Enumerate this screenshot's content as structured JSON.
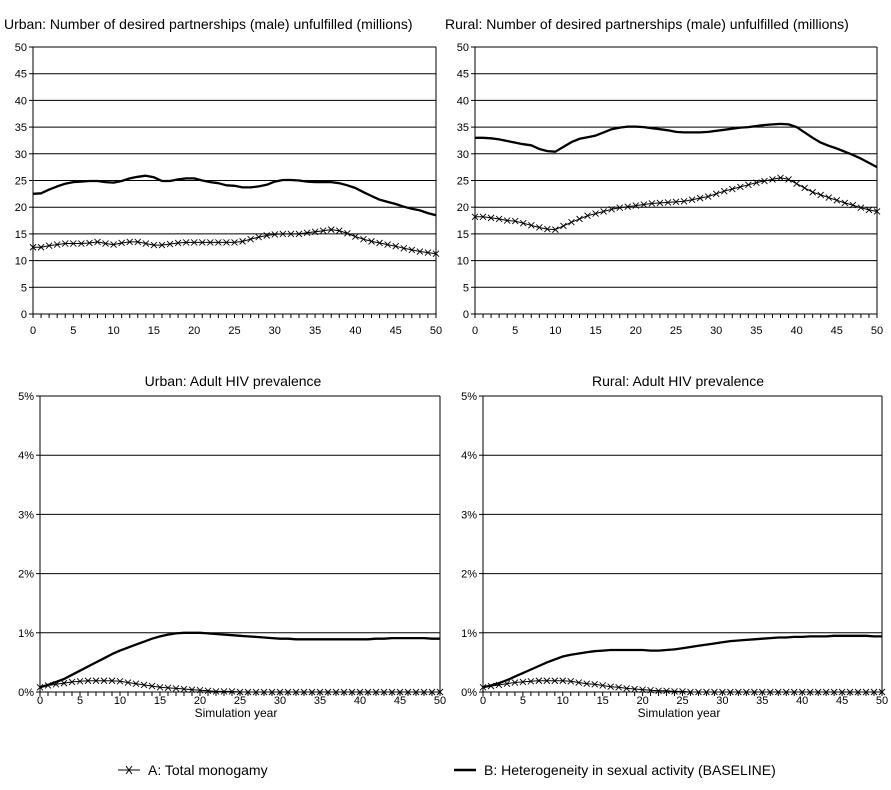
{
  "legend": [
    {
      "label": "A: Total monogamy",
      "marker": "x"
    },
    {
      "label": "B: Heterogeneity in sexual activity (BASELINE)",
      "marker": "none"
    }
  ],
  "colors": {
    "series": "#000000",
    "grid": "#000000",
    "background": "#ffffff"
  },
  "chart_data": [
    {
      "type": "line",
      "title": "Urban: Number of desired partnerships (male) unfulfilled (millions)",
      "xlabel": "",
      "ylabel": "",
      "xlim": [
        0,
        50
      ],
      "ylim": [
        0,
        50
      ],
      "x_ticks": [
        0,
        5,
        10,
        15,
        20,
        25,
        30,
        35,
        40,
        45,
        50
      ],
      "y_ticks": [
        "0",
        "5",
        "10",
        "15",
        "20",
        "25",
        "30",
        "35",
        "40",
        "45",
        "50"
      ],
      "grid": "horizontal",
      "series": [
        {
          "name": "A: Total monogamy",
          "marker": "x",
          "x": [
            0,
            1,
            2,
            3,
            4,
            5,
            6,
            7,
            8,
            9,
            10,
            11,
            12,
            13,
            14,
            15,
            16,
            17,
            18,
            19,
            20,
            21,
            22,
            23,
            24,
            25,
            26,
            27,
            28,
            29,
            30,
            31,
            32,
            33,
            34,
            35,
            36,
            37,
            38,
            39,
            40,
            41,
            42,
            43,
            44,
            45,
            46,
            47,
            48,
            49,
            50
          ],
          "values": [
            12.5,
            12.5,
            12.8,
            13.0,
            13.2,
            13.2,
            13.2,
            13.3,
            13.5,
            13.2,
            13.0,
            13.3,
            13.5,
            13.5,
            13.2,
            12.9,
            12.9,
            13.1,
            13.3,
            13.4,
            13.4,
            13.4,
            13.4,
            13.4,
            13.4,
            13.4,
            13.6,
            14.0,
            14.4,
            14.7,
            14.9,
            15.0,
            15.0,
            15.0,
            15.2,
            15.4,
            15.6,
            15.8,
            15.6,
            15.1,
            14.5,
            14.0,
            13.6,
            13.3,
            13.0,
            12.7,
            12.3,
            12.0,
            11.7,
            11.5,
            11.3
          ]
        },
        {
          "name": "B: Heterogeneity in sexual activity (BASELINE)",
          "marker": "none",
          "x": [
            0,
            1,
            2,
            3,
            4,
            5,
            6,
            7,
            8,
            9,
            10,
            11,
            12,
            13,
            14,
            15,
            16,
            17,
            18,
            19,
            20,
            21,
            22,
            23,
            24,
            25,
            26,
            27,
            28,
            29,
            30,
            31,
            32,
            33,
            34,
            35,
            36,
            37,
            38,
            39,
            40,
            41,
            42,
            43,
            44,
            45,
            46,
            47,
            48,
            49,
            50
          ],
          "values": [
            22.5,
            22.6,
            23.3,
            23.9,
            24.4,
            24.7,
            24.8,
            24.9,
            24.9,
            24.7,
            24.6,
            24.9,
            25.4,
            25.7,
            25.9,
            25.6,
            24.9,
            24.9,
            25.2,
            25.4,
            25.4,
            25.0,
            24.7,
            24.5,
            24.1,
            24.0,
            23.7,
            23.7,
            23.9,
            24.2,
            24.8,
            25.1,
            25.1,
            25.0,
            24.8,
            24.7,
            24.7,
            24.7,
            24.5,
            24.1,
            23.6,
            22.8,
            22.1,
            21.4,
            21.0,
            20.6,
            20.1,
            19.7,
            19.4,
            18.9,
            18.5
          ]
        }
      ]
    },
    {
      "type": "line",
      "title": "Rural: Number of desired partnerships (male) unfulfilled (millions)",
      "xlabel": "",
      "ylabel": "",
      "xlim": [
        0,
        50
      ],
      "ylim": [
        0,
        50
      ],
      "x_ticks": [
        0,
        5,
        10,
        15,
        20,
        25,
        30,
        35,
        40,
        45,
        50
      ],
      "y_ticks": [
        "0",
        "5",
        "10",
        "15",
        "20",
        "25",
        "30",
        "35",
        "40",
        "45",
        "50"
      ],
      "grid": "horizontal",
      "series": [
        {
          "name": "A: Total monogamy",
          "marker": "x",
          "x": [
            0,
            1,
            2,
            3,
            4,
            5,
            6,
            7,
            8,
            9,
            10,
            11,
            12,
            13,
            14,
            15,
            16,
            17,
            18,
            19,
            20,
            21,
            22,
            23,
            24,
            25,
            26,
            27,
            28,
            29,
            30,
            31,
            32,
            33,
            34,
            35,
            36,
            37,
            38,
            39,
            40,
            41,
            42,
            43,
            44,
            45,
            46,
            47,
            48,
            49,
            50
          ],
          "values": [
            18.2,
            18.2,
            18.0,
            17.8,
            17.5,
            17.4,
            17.0,
            16.6,
            16.2,
            15.9,
            15.8,
            16.5,
            17.2,
            17.8,
            18.4,
            18.8,
            19.2,
            19.6,
            19.9,
            20.1,
            20.3,
            20.5,
            20.7,
            20.8,
            20.9,
            21.0,
            21.1,
            21.4,
            21.7,
            22.0,
            22.5,
            23.0,
            23.4,
            23.8,
            24.2,
            24.6,
            24.9,
            25.2,
            25.5,
            25.2,
            24.4,
            23.6,
            22.8,
            22.3,
            21.8,
            21.3,
            20.8,
            20.4,
            19.9,
            19.5,
            19.2
          ]
        },
        {
          "name": "B: Heterogeneity in sexual activity (BASELINE)",
          "marker": "none",
          "x": [
            0,
            1,
            2,
            3,
            4,
            5,
            6,
            7,
            8,
            9,
            10,
            11,
            12,
            13,
            14,
            15,
            16,
            17,
            18,
            19,
            20,
            21,
            22,
            23,
            24,
            25,
            26,
            27,
            28,
            29,
            30,
            31,
            32,
            33,
            34,
            35,
            36,
            37,
            38,
            39,
            40,
            41,
            42,
            43,
            44,
            45,
            46,
            47,
            48,
            49,
            50
          ],
          "values": [
            33.0,
            33.0,
            32.9,
            32.7,
            32.4,
            32.1,
            31.8,
            31.6,
            30.9,
            30.5,
            30.4,
            31.3,
            32.2,
            32.8,
            33.1,
            33.4,
            34.0,
            34.6,
            34.9,
            35.1,
            35.1,
            35.0,
            34.8,
            34.6,
            34.4,
            34.1,
            34.0,
            34.0,
            34.0,
            34.1,
            34.3,
            34.5,
            34.7,
            34.9,
            35.0,
            35.2,
            35.4,
            35.5,
            35.6,
            35.5,
            35.0,
            34.0,
            33.0,
            32.1,
            31.5,
            31.0,
            30.4,
            29.8,
            29.1,
            28.3,
            27.5
          ]
        }
      ]
    },
    {
      "type": "line",
      "title": "Urban: Adult HIV prevalence",
      "xlabel": "Simulation year",
      "ylabel": "",
      "xlim": [
        0,
        50
      ],
      "ylim": [
        0,
        5
      ],
      "x_ticks": [
        0,
        5,
        10,
        15,
        20,
        25,
        30,
        35,
        40,
        45,
        50
      ],
      "y_ticks": [
        "0%",
        "1%",
        "2%",
        "3%",
        "4%",
        "5%"
      ],
      "grid": "horizontal",
      "series": [
        {
          "name": "A: Total monogamy",
          "marker": "x",
          "x": [
            0,
            1,
            2,
            3,
            4,
            5,
            6,
            7,
            8,
            9,
            10,
            11,
            12,
            13,
            14,
            15,
            16,
            17,
            18,
            19,
            20,
            21,
            22,
            23,
            24,
            25,
            26,
            27,
            28,
            29,
            30,
            31,
            32,
            33,
            34,
            35,
            36,
            37,
            38,
            39,
            40,
            41,
            42,
            43,
            44,
            45,
            46,
            47,
            48,
            49,
            50
          ],
          "values": [
            0.08,
            0.11,
            0.13,
            0.15,
            0.17,
            0.18,
            0.19,
            0.19,
            0.19,
            0.19,
            0.18,
            0.16,
            0.14,
            0.12,
            0.1,
            0.08,
            0.07,
            0.06,
            0.05,
            0.04,
            0.03,
            0.02,
            0.01,
            0.01,
            0.01,
            0.0,
            0.0,
            0.0,
            0.0,
            0.0,
            0.0,
            0.0,
            0.0,
            0.0,
            0.0,
            0.0,
            0.0,
            0.0,
            0.0,
            0.0,
            0.0,
            0.0,
            0.0,
            0.0,
            0.0,
            0.0,
            0.0,
            0.0,
            0.0,
            0.0,
            0.0
          ]
        },
        {
          "name": "B: Heterogeneity in sexual activity (BASELINE)",
          "marker": "none",
          "x": [
            0,
            1,
            2,
            3,
            4,
            5,
            6,
            7,
            8,
            9,
            10,
            11,
            12,
            13,
            14,
            15,
            16,
            17,
            18,
            19,
            20,
            21,
            22,
            23,
            24,
            25,
            26,
            27,
            28,
            29,
            30,
            31,
            32,
            33,
            34,
            35,
            36,
            37,
            38,
            39,
            40,
            41,
            42,
            43,
            44,
            45,
            46,
            47,
            48,
            49,
            50
          ],
          "values": [
            0.08,
            0.12,
            0.17,
            0.22,
            0.29,
            0.36,
            0.43,
            0.5,
            0.57,
            0.64,
            0.7,
            0.75,
            0.8,
            0.85,
            0.9,
            0.94,
            0.97,
            0.99,
            1.0,
            1.0,
            1.0,
            0.99,
            0.98,
            0.97,
            0.96,
            0.95,
            0.94,
            0.93,
            0.92,
            0.91,
            0.9,
            0.9,
            0.89,
            0.89,
            0.89,
            0.89,
            0.89,
            0.89,
            0.89,
            0.89,
            0.89,
            0.89,
            0.9,
            0.9,
            0.91,
            0.91,
            0.91,
            0.91,
            0.91,
            0.9,
            0.9
          ]
        }
      ]
    },
    {
      "type": "line",
      "title": "Rural: Adult HIV prevalence",
      "xlabel": "Simulation year",
      "ylabel": "",
      "xlim": [
        0,
        50
      ],
      "ylim": [
        0,
        5
      ],
      "x_ticks": [
        0,
        5,
        10,
        15,
        20,
        25,
        30,
        35,
        40,
        45,
        50
      ],
      "y_ticks": [
        "0%",
        "1%",
        "2%",
        "3%",
        "4%",
        "5%"
      ],
      "grid": "horizontal",
      "series": [
        {
          "name": "A: Total monogamy",
          "marker": "x",
          "x": [
            0,
            1,
            2,
            3,
            4,
            5,
            6,
            7,
            8,
            9,
            10,
            11,
            12,
            13,
            14,
            15,
            16,
            17,
            18,
            19,
            20,
            21,
            22,
            23,
            24,
            25,
            26,
            27,
            28,
            29,
            30,
            31,
            32,
            33,
            34,
            35,
            36,
            37,
            38,
            39,
            40,
            41,
            42,
            43,
            44,
            45,
            46,
            47,
            48,
            49,
            50
          ],
          "values": [
            0.08,
            0.1,
            0.12,
            0.14,
            0.16,
            0.17,
            0.18,
            0.19,
            0.19,
            0.19,
            0.19,
            0.18,
            0.16,
            0.14,
            0.13,
            0.11,
            0.09,
            0.08,
            0.06,
            0.05,
            0.04,
            0.03,
            0.02,
            0.02,
            0.01,
            0.01,
            0.0,
            0.0,
            0.0,
            0.0,
            0.0,
            0.0,
            0.0,
            0.0,
            0.0,
            0.0,
            0.0,
            0.0,
            0.0,
            0.0,
            0.0,
            0.0,
            0.0,
            0.0,
            0.0,
            0.0,
            0.0,
            0.0,
            0.0,
            0.0,
            0.0
          ]
        },
        {
          "name": "B: Heterogeneity in sexual activity (BASELINE)",
          "marker": "none",
          "x": [
            0,
            1,
            2,
            3,
            4,
            5,
            6,
            7,
            8,
            9,
            10,
            11,
            12,
            13,
            14,
            15,
            16,
            17,
            18,
            19,
            20,
            21,
            22,
            23,
            24,
            25,
            26,
            27,
            28,
            29,
            30,
            31,
            32,
            33,
            34,
            35,
            36,
            37,
            38,
            39,
            40,
            41,
            42,
            43,
            44,
            45,
            46,
            47,
            48,
            49,
            50
          ],
          "values": [
            0.08,
            0.11,
            0.15,
            0.2,
            0.26,
            0.32,
            0.38,
            0.44,
            0.5,
            0.55,
            0.6,
            0.63,
            0.65,
            0.67,
            0.69,
            0.7,
            0.71,
            0.71,
            0.71,
            0.71,
            0.71,
            0.7,
            0.7,
            0.71,
            0.72,
            0.74,
            0.76,
            0.78,
            0.8,
            0.82,
            0.84,
            0.86,
            0.87,
            0.88,
            0.89,
            0.9,
            0.91,
            0.92,
            0.92,
            0.93,
            0.93,
            0.94,
            0.94,
            0.94,
            0.95,
            0.95,
            0.95,
            0.95,
            0.95,
            0.94,
            0.94
          ]
        }
      ]
    }
  ]
}
